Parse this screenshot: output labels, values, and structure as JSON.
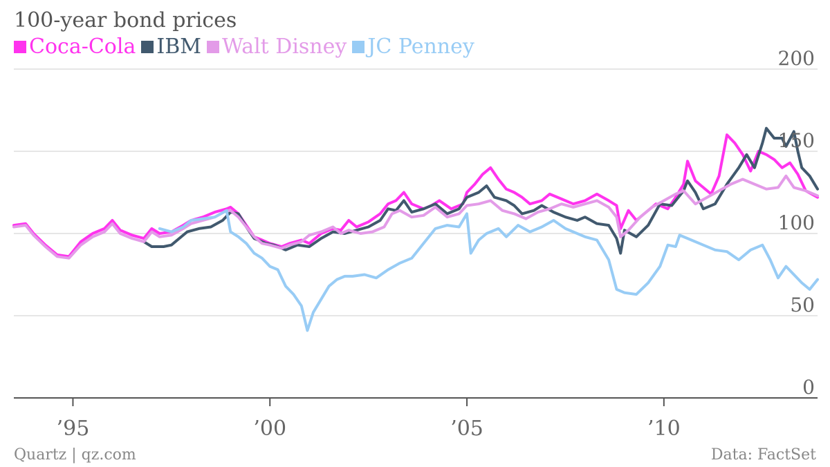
{
  "chart_data": {
    "type": "line",
    "title": "100-year bond prices",
    "x_tick_labels": [
      "’95",
      "’00",
      "’05",
      "’10"
    ],
    "x_tick_years": [
      1995,
      2000,
      2005,
      2010
    ],
    "xlim": [
      1993.5,
      2013.9
    ],
    "ylim": [
      0,
      200
    ],
    "y_ticks": [
      0,
      50,
      100,
      150,
      200
    ],
    "grid": true,
    "legend_position": "top-left",
    "series": [
      {
        "name": "Coca-Cola",
        "color": "#ff33ee",
        "points": [
          [
            1993.5,
            105
          ],
          [
            1993.8,
            106
          ],
          [
            1994.0,
            100
          ],
          [
            1994.3,
            93
          ],
          [
            1994.6,
            87
          ],
          [
            1994.9,
            86
          ],
          [
            1995.2,
            95
          ],
          [
            1995.5,
            100
          ],
          [
            1995.8,
            103
          ],
          [
            1996.0,
            108
          ],
          [
            1996.2,
            102
          ],
          [
            1996.5,
            99
          ],
          [
            1996.8,
            97
          ],
          [
            1997.0,
            103
          ],
          [
            1997.2,
            100
          ],
          [
            1997.5,
            101
          ],
          [
            1997.8,
            105
          ],
          [
            1998.0,
            108
          ],
          [
            1998.3,
            110
          ],
          [
            1998.6,
            113
          ],
          [
            1998.9,
            115
          ],
          [
            1999.0,
            116
          ],
          [
            1999.2,
            112
          ],
          [
            1999.4,
            105
          ],
          [
            1999.6,
            98
          ],
          [
            1999.8,
            96
          ],
          [
            2000.0,
            94
          ],
          [
            2000.3,
            92
          ],
          [
            2000.5,
            94
          ],
          [
            2000.8,
            96
          ],
          [
            2001.0,
            94
          ],
          [
            2001.3,
            100
          ],
          [
            2001.6,
            103
          ],
          [
            2001.8,
            102
          ],
          [
            2002.0,
            108
          ],
          [
            2002.2,
            104
          ],
          [
            2002.5,
            107
          ],
          [
            2002.8,
            112
          ],
          [
            2003.0,
            118
          ],
          [
            2003.2,
            120
          ],
          [
            2003.4,
            125
          ],
          [
            2003.6,
            118
          ],
          [
            2003.9,
            115
          ],
          [
            2004.1,
            117
          ],
          [
            2004.3,
            120
          ],
          [
            2004.6,
            115
          ],
          [
            2004.9,
            118
          ],
          [
            2005.0,
            125
          ],
          [
            2005.2,
            130
          ],
          [
            2005.4,
            136
          ],
          [
            2005.6,
            140
          ],
          [
            2005.8,
            133
          ],
          [
            2006.0,
            127
          ],
          [
            2006.2,
            125
          ],
          [
            2006.4,
            122
          ],
          [
            2006.6,
            118
          ],
          [
            2006.9,
            120
          ],
          [
            2007.1,
            124
          ],
          [
            2007.4,
            121
          ],
          [
            2007.7,
            118
          ],
          [
            2008.0,
            120
          ],
          [
            2008.3,
            124
          ],
          [
            2008.6,
            120
          ],
          [
            2008.8,
            117
          ],
          [
            2008.9,
            103
          ],
          [
            2009.1,
            114
          ],
          [
            2009.3,
            108
          ],
          [
            2009.5,
            112
          ],
          [
            2009.8,
            118
          ],
          [
            2010.1,
            115
          ],
          [
            2010.3,
            122
          ],
          [
            2010.5,
            130
          ],
          [
            2010.6,
            144
          ],
          [
            2010.8,
            132
          ],
          [
            2011.0,
            128
          ],
          [
            2011.2,
            124
          ],
          [
            2011.4,
            135
          ],
          [
            2011.6,
            160
          ],
          [
            2011.8,
            155
          ],
          [
            2012.0,
            148
          ],
          [
            2012.2,
            138
          ],
          [
            2012.4,
            150
          ],
          [
            2012.6,
            148
          ],
          [
            2012.8,
            145
          ],
          [
            2013.0,
            140
          ],
          [
            2013.2,
            143
          ],
          [
            2013.4,
            136
          ],
          [
            2013.6,
            126
          ],
          [
            2013.9,
            122
          ]
        ]
      },
      {
        "name": "IBM",
        "color": "#41596e",
        "points": [
          [
            1996.8,
            95
          ],
          [
            1997.0,
            92
          ],
          [
            1997.3,
            92
          ],
          [
            1997.5,
            93
          ],
          [
            1997.7,
            97
          ],
          [
            1997.9,
            101
          ],
          [
            1998.2,
            103
          ],
          [
            1998.5,
            104
          ],
          [
            1998.8,
            108
          ],
          [
            1999.0,
            113
          ],
          [
            1999.2,
            112
          ],
          [
            1999.4,
            104
          ],
          [
            1999.6,
            97
          ],
          [
            1999.9,
            94
          ],
          [
            2000.1,
            93
          ],
          [
            2000.4,
            90
          ],
          [
            2000.7,
            93
          ],
          [
            2001.0,
            92
          ],
          [
            2001.3,
            97
          ],
          [
            2001.6,
            101
          ],
          [
            2001.9,
            100
          ],
          [
            2002.2,
            102
          ],
          [
            2002.5,
            104
          ],
          [
            2002.8,
            108
          ],
          [
            2003.0,
            115
          ],
          [
            2003.2,
            114
          ],
          [
            2003.4,
            120
          ],
          [
            2003.6,
            113
          ],
          [
            2003.9,
            115
          ],
          [
            2004.2,
            118
          ],
          [
            2004.5,
            112
          ],
          [
            2004.8,
            115
          ],
          [
            2005.0,
            122
          ],
          [
            2005.3,
            125
          ],
          [
            2005.5,
            129
          ],
          [
            2005.7,
            122
          ],
          [
            2006.0,
            120
          ],
          [
            2006.2,
            117
          ],
          [
            2006.4,
            112
          ],
          [
            2006.7,
            114
          ],
          [
            2006.9,
            117
          ],
          [
            2007.2,
            113
          ],
          [
            2007.5,
            110
          ],
          [
            2007.8,
            108
          ],
          [
            2008.0,
            110
          ],
          [
            2008.3,
            106
          ],
          [
            2008.6,
            105
          ],
          [
            2008.8,
            97
          ],
          [
            2008.9,
            88
          ],
          [
            2009.0,
            102
          ],
          [
            2009.3,
            98
          ],
          [
            2009.6,
            105
          ],
          [
            2009.9,
            118
          ],
          [
            2010.2,
            117
          ],
          [
            2010.5,
            126
          ],
          [
            2010.6,
            132
          ],
          [
            2010.8,
            125
          ],
          [
            2011.0,
            115
          ],
          [
            2011.3,
            118
          ],
          [
            2011.6,
            130
          ],
          [
            2011.9,
            140
          ],
          [
            2012.1,
            148
          ],
          [
            2012.3,
            140
          ],
          [
            2012.5,
            155
          ],
          [
            2012.6,
            164
          ],
          [
            2012.8,
            158
          ],
          [
            2013.0,
            158
          ],
          [
            2013.1,
            153
          ],
          [
            2013.3,
            162
          ],
          [
            2013.4,
            150
          ],
          [
            2013.5,
            140
          ],
          [
            2013.7,
            135
          ],
          [
            2013.9,
            127
          ]
        ]
      },
      {
        "name": "Walt Disney",
        "color": "#e39be8",
        "points": [
          [
            1993.5,
            104
          ],
          [
            1993.8,
            105
          ],
          [
            1994.0,
            99
          ],
          [
            1994.3,
            92
          ],
          [
            1994.6,
            86
          ],
          [
            1994.9,
            85
          ],
          [
            1995.2,
            93
          ],
          [
            1995.5,
            98
          ],
          [
            1995.8,
            101
          ],
          [
            1996.0,
            106
          ],
          [
            1996.2,
            100
          ],
          [
            1996.5,
            97
          ],
          [
            1996.8,
            95
          ],
          [
            1997.0,
            101
          ],
          [
            1997.2,
            98
          ],
          [
            1997.5,
            99
          ],
          [
            1997.8,
            103
          ],
          [
            1998.0,
            106
          ],
          [
            1998.3,
            108
          ],
          [
            1998.6,
            110
          ],
          [
            1998.9,
            114
          ],
          [
            1999.0,
            114
          ],
          [
            1999.2,
            110
          ],
          [
            1999.4,
            104
          ],
          [
            1999.6,
            98
          ],
          [
            1999.8,
            94
          ],
          [
            2000.0,
            93
          ],
          [
            2000.3,
            91
          ],
          [
            2000.5,
            93
          ],
          [
            2000.8,
            95
          ],
          [
            2001.0,
            99
          ],
          [
            2001.3,
            101
          ],
          [
            2001.6,
            104
          ],
          [
            2001.8,
            100
          ],
          [
            2002.0,
            102
          ],
          [
            2002.3,
            100
          ],
          [
            2002.6,
            101
          ],
          [
            2002.9,
            104
          ],
          [
            2003.1,
            112
          ],
          [
            2003.3,
            114
          ],
          [
            2003.6,
            110
          ],
          [
            2003.9,
            111
          ],
          [
            2004.2,
            116
          ],
          [
            2004.5,
            110
          ],
          [
            2004.8,
            112
          ],
          [
            2005.0,
            117
          ],
          [
            2005.3,
            118
          ],
          [
            2005.6,
            120
          ],
          [
            2005.9,
            114
          ],
          [
            2006.2,
            112
          ],
          [
            2006.5,
            109
          ],
          [
            2006.8,
            113
          ],
          [
            2007.1,
            115
          ],
          [
            2007.4,
            118
          ],
          [
            2007.7,
            116
          ],
          [
            2008.0,
            118
          ],
          [
            2008.3,
            120
          ],
          [
            2008.6,
            116
          ],
          [
            2008.8,
            110
          ],
          [
            2008.9,
            98
          ],
          [
            2009.1,
            102
          ],
          [
            2009.4,
            110
          ],
          [
            2009.7,
            116
          ],
          [
            2010.0,
            120
          ],
          [
            2010.3,
            124
          ],
          [
            2010.5,
            126
          ],
          [
            2010.8,
            118
          ],
          [
            2011.1,
            122
          ],
          [
            2011.4,
            126
          ],
          [
            2011.7,
            130
          ],
          [
            2012.0,
            133
          ],
          [
            2012.3,
            130
          ],
          [
            2012.6,
            127
          ],
          [
            2012.9,
            128
          ],
          [
            2013.1,
            135
          ],
          [
            2013.3,
            128
          ],
          [
            2013.6,
            126
          ],
          [
            2013.9,
            123
          ]
        ]
      },
      {
        "name": "JC Penney",
        "color": "#98ccf5",
        "points": [
          [
            1997.2,
            103
          ],
          [
            1997.5,
            101
          ],
          [
            1997.8,
            104
          ],
          [
            1998.0,
            108
          ],
          [
            1998.3,
            109
          ],
          [
            1998.6,
            110
          ],
          [
            1998.9,
            114
          ],
          [
            1999.0,
            101
          ],
          [
            1999.2,
            98
          ],
          [
            1999.4,
            94
          ],
          [
            1999.6,
            88
          ],
          [
            1999.8,
            85
          ],
          [
            2000.0,
            80
          ],
          [
            2000.2,
            78
          ],
          [
            2000.4,
            68
          ],
          [
            2000.6,
            63
          ],
          [
            2000.8,
            56
          ],
          [
            2000.95,
            41
          ],
          [
            2001.1,
            52
          ],
          [
            2001.3,
            60
          ],
          [
            2001.5,
            68
          ],
          [
            2001.7,
            72
          ],
          [
            2001.9,
            74
          ],
          [
            2002.1,
            74
          ],
          [
            2002.4,
            75
          ],
          [
            2002.7,
            73
          ],
          [
            2003.0,
            78
          ],
          [
            2003.3,
            82
          ],
          [
            2003.6,
            85
          ],
          [
            2003.9,
            94
          ],
          [
            2004.2,
            103
          ],
          [
            2004.5,
            105
          ],
          [
            2004.8,
            104
          ],
          [
            2005.0,
            112
          ],
          [
            2005.1,
            88
          ],
          [
            2005.3,
            96
          ],
          [
            2005.5,
            100
          ],
          [
            2005.8,
            103
          ],
          [
            2006.0,
            98
          ],
          [
            2006.3,
            105
          ],
          [
            2006.6,
            101
          ],
          [
            2006.9,
            104
          ],
          [
            2007.2,
            108
          ],
          [
            2007.5,
            103
          ],
          [
            2007.8,
            100
          ],
          [
            2008.0,
            98
          ],
          [
            2008.3,
            96
          ],
          [
            2008.6,
            84
          ],
          [
            2008.8,
            66
          ],
          [
            2009.0,
            64
          ],
          [
            2009.3,
            63
          ],
          [
            2009.6,
            70
          ],
          [
            2009.9,
            80
          ],
          [
            2010.1,
            93
          ],
          [
            2010.3,
            92
          ],
          [
            2010.4,
            99
          ],
          [
            2010.7,
            96
          ],
          [
            2011.0,
            93
          ],
          [
            2011.3,
            90
          ],
          [
            2011.6,
            89
          ],
          [
            2011.9,
            84
          ],
          [
            2012.2,
            90
          ],
          [
            2012.5,
            93
          ],
          [
            2012.7,
            84
          ],
          [
            2012.9,
            73
          ],
          [
            2013.1,
            80
          ],
          [
            2013.3,
            75
          ],
          [
            2013.5,
            70
          ],
          [
            2013.7,
            66
          ],
          [
            2013.9,
            72
          ]
        ]
      }
    ]
  },
  "footer": {
    "source_left": "Quartz | qz.com",
    "source_right": "Data: FactSet"
  }
}
